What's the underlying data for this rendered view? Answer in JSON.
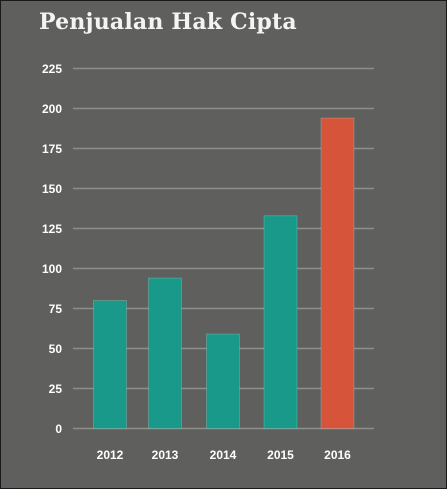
{
  "chart_data": {
    "type": "bar",
    "title": "Penjualan Hak Cipta",
    "categories": [
      "2012",
      "2013",
      "2014",
      "2015",
      "2016"
    ],
    "values": [
      80,
      94,
      59,
      133,
      194
    ],
    "ylim": [
      0,
      225
    ],
    "yticks": [
      0,
      25,
      50,
      75,
      100,
      125,
      150,
      175,
      200,
      225
    ],
    "grid": true,
    "bar_colors": [
      "#18998a",
      "#18998a",
      "#18998a",
      "#18998a",
      "#d6553a"
    ]
  }
}
